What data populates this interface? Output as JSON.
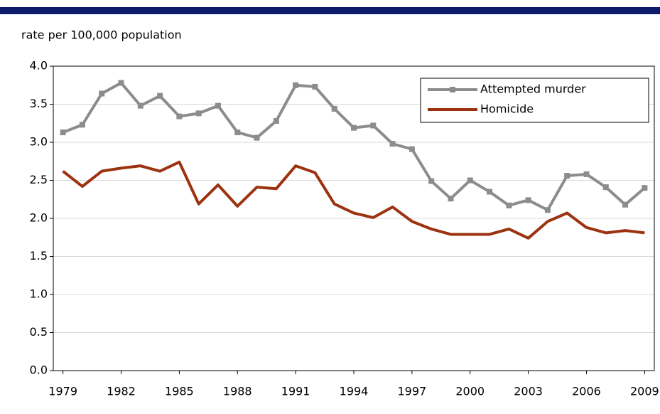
{
  "chart_data": {
    "type": "line",
    "ylabel": "rate per 100,000 population",
    "x": [
      1979,
      1980,
      1981,
      1982,
      1983,
      1984,
      1985,
      1986,
      1987,
      1988,
      1989,
      1990,
      1991,
      1992,
      1993,
      1994,
      1995,
      1996,
      1997,
      1998,
      1999,
      2000,
      2001,
      2002,
      2003,
      2004,
      2005,
      2006,
      2007,
      2008,
      2009
    ],
    "xlim": [
      1978.5,
      2009.5
    ],
    "xticks": [
      1979,
      1982,
      1985,
      1988,
      1991,
      1994,
      1997,
      2000,
      2003,
      2006,
      2009
    ],
    "ylim": [
      0,
      4
    ],
    "yticks": [
      {
        "value": 0,
        "label": "0.0"
      },
      0.5,
      {
        "value": 1,
        "label": "1.0"
      },
      1.5,
      {
        "value": 2,
        "label": "2.0"
      },
      2.5,
      {
        "value": 3,
        "label": "3.0"
      },
      3.5,
      {
        "value": 4,
        "label": "4.0"
      }
    ],
    "grid": true,
    "legend": "upper right",
    "series": [
      {
        "name": "Attempted murder",
        "color": "#8c8c8c",
        "marker": "square",
        "values": [
          3.13,
          3.23,
          3.64,
          3.78,
          3.48,
          3.61,
          3.34,
          3.38,
          3.48,
          3.13,
          3.06,
          3.28,
          3.75,
          3.73,
          3.44,
          3.19,
          3.22,
          2.98,
          2.91,
          2.49,
          2.26,
          2.5,
          2.35,
          2.17,
          2.24,
          2.11,
          2.56,
          2.58,
          2.41,
          2.18,
          2.4
        ]
      },
      {
        "name": "Homicide",
        "color": "#9c3310",
        "values": [
          2.62,
          2.42,
          2.62,
          2.66,
          2.69,
          2.62,
          2.74,
          2.19,
          2.44,
          2.16,
          2.41,
          2.39,
          2.69,
          2.6,
          2.19,
          2.07,
          2.01,
          2.15,
          1.96,
          1.86,
          1.79,
          1.79,
          1.79,
          1.86,
          1.74,
          1.96,
          2.07,
          1.88,
          1.81,
          1.84,
          1.81
        ]
      }
    ]
  }
}
